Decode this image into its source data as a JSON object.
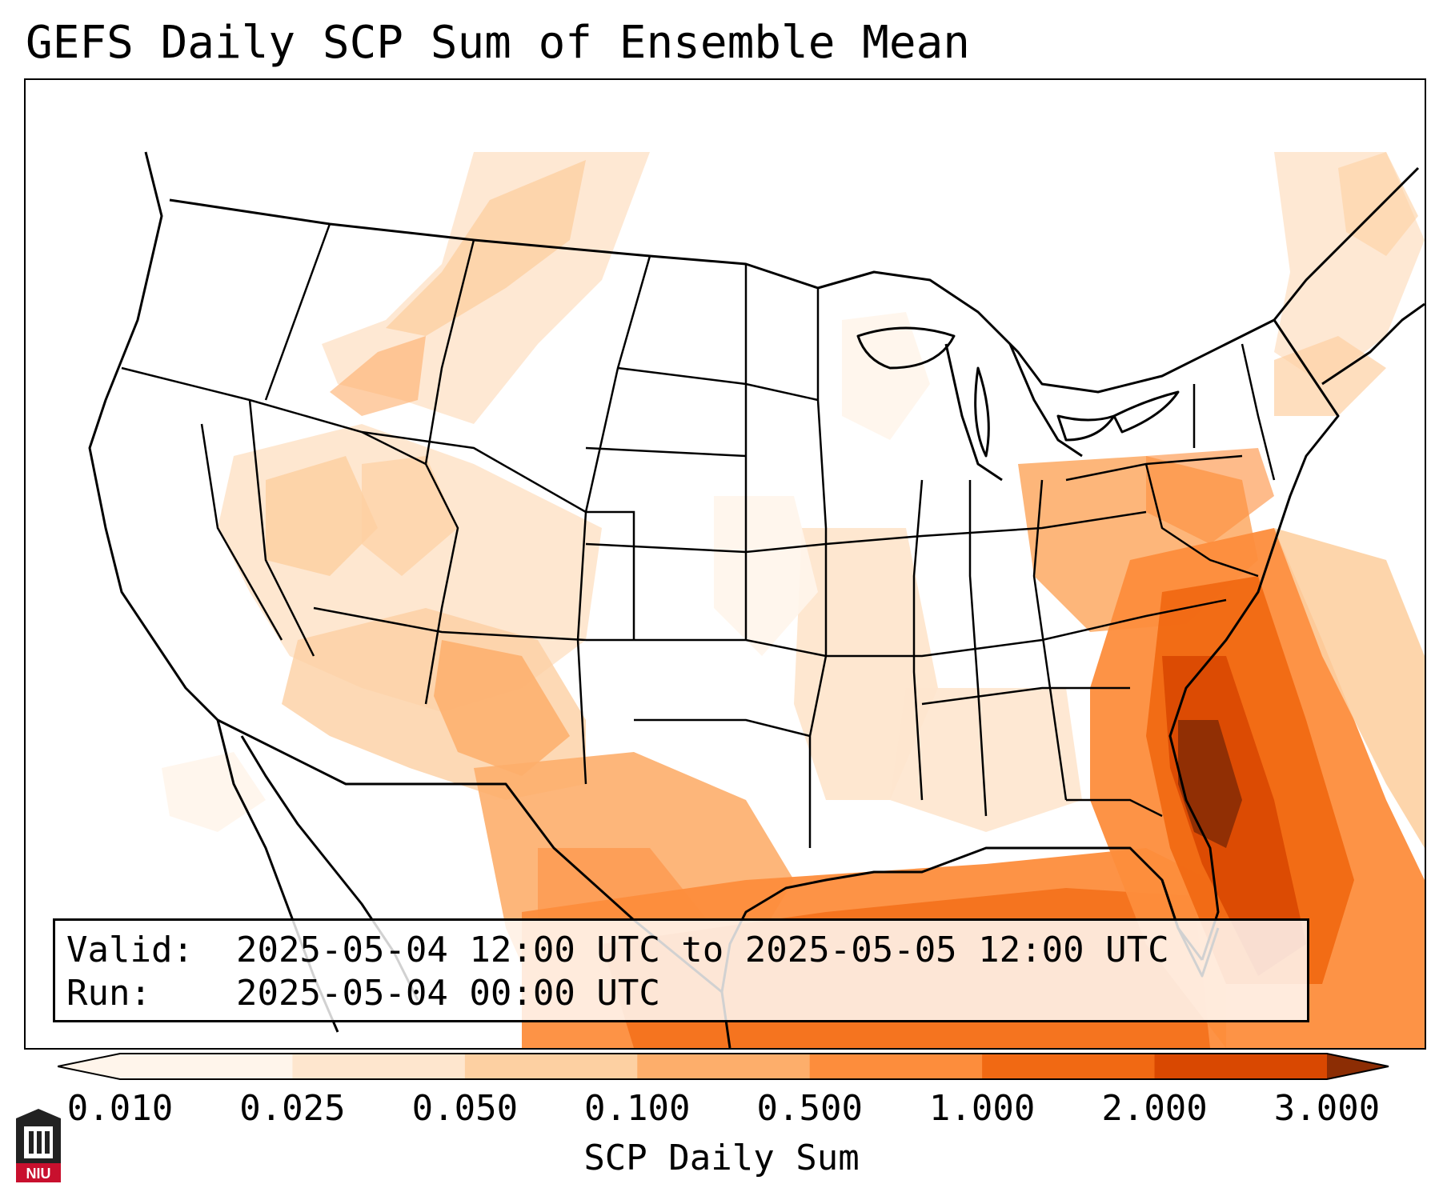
{
  "title": "GEFS Daily SCP Sum of Ensemble Mean",
  "info": {
    "valid_key": "Valid:",
    "valid_value": "2025-05-04 12:00 UTC to 2025-05-05 12:00 UTC",
    "run_key": "Run:",
    "run_value": "2025-05-04 00:00 UTC"
  },
  "colorbar": {
    "label": "SCP Daily Sum",
    "ticks": [
      "0.010",
      "0.025",
      "0.050",
      "0.100",
      "0.500",
      "1.000",
      "2.000",
      "3.000"
    ],
    "colors": [
      "#fff5eb",
      "#fee6ce",
      "#fdd0a2",
      "#fdae6b",
      "#fd8d3c",
      "#f16913",
      "#d94801",
      "#8c2d04"
    ],
    "extend": "both"
  },
  "logo": {
    "text": "NIU",
    "colors": {
      "red": "#c8102e",
      "black": "#222222"
    }
  },
  "map": {
    "projection": "Lambert conformal",
    "region": "CONUS",
    "field_colormap": "Oranges"
  }
}
